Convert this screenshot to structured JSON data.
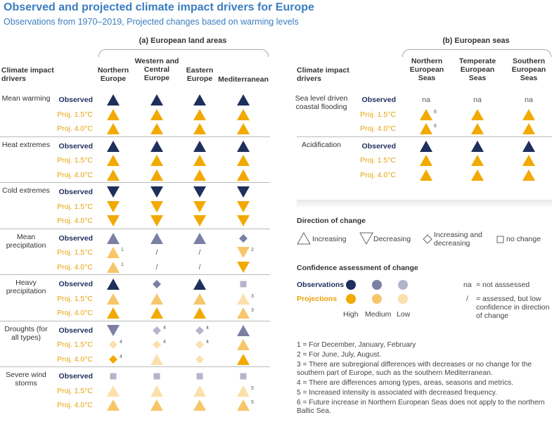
{
  "title": "Observed and projected climate impact drivers for Europe",
  "subtitle": "Observations from 1970–2019, Projected changes based on warming levels",
  "colors": {
    "obs_high": "#1f2f5c",
    "obs_medium": "#7b7fa3",
    "obs_low": "#b4b5cc",
    "proj_high": "#f2a900",
    "proj_medium": "#f7c66a",
    "proj_low": "#fbe0ad",
    "grey": "#aaaaaa",
    "accent": "#3a7dc0"
  },
  "land": {
    "panel_title": "(a) European land areas",
    "row_header": "Climate impact drivers",
    "columns": [
      "Northern Europe",
      "Western and Central Europe",
      "Eastern Europe",
      "Mediterranean"
    ],
    "groups": [
      {
        "driver": "Mean warming",
        "rows": [
          {
            "label": "Observed",
            "cells": [
              {
                "shape": "up",
                "c": "obs_high"
              },
              {
                "shape": "up",
                "c": "obs_high"
              },
              {
                "shape": "up",
                "c": "obs_high"
              },
              {
                "shape": "up",
                "c": "obs_high"
              }
            ]
          },
          {
            "label": "Proj. 1.5°C",
            "cells": [
              {
                "shape": "up",
                "c": "proj_high"
              },
              {
                "shape": "up",
                "c": "proj_high"
              },
              {
                "shape": "up",
                "c": "proj_high"
              },
              {
                "shape": "up",
                "c": "proj_high"
              }
            ]
          },
          {
            "label": "Proj. 4.0°C",
            "cells": [
              {
                "shape": "up",
                "c": "proj_high"
              },
              {
                "shape": "up",
                "c": "proj_high"
              },
              {
                "shape": "up",
                "c": "proj_high"
              },
              {
                "shape": "up",
                "c": "proj_high"
              }
            ]
          }
        ]
      },
      {
        "driver": "Heat extremes",
        "rows": [
          {
            "label": "Observed",
            "cells": [
              {
                "shape": "up",
                "c": "obs_high"
              },
              {
                "shape": "up",
                "c": "obs_high"
              },
              {
                "shape": "up",
                "c": "obs_high"
              },
              {
                "shape": "up",
                "c": "obs_high"
              }
            ]
          },
          {
            "label": "Proj. 1.5°C",
            "cells": [
              {
                "shape": "up",
                "c": "proj_high"
              },
              {
                "shape": "up",
                "c": "proj_high"
              },
              {
                "shape": "up",
                "c": "proj_high"
              },
              {
                "shape": "up",
                "c": "proj_high"
              }
            ]
          },
          {
            "label": "Proj. 4.0°C",
            "cells": [
              {
                "shape": "up",
                "c": "proj_high"
              },
              {
                "shape": "up",
                "c": "proj_high"
              },
              {
                "shape": "up",
                "c": "proj_high"
              },
              {
                "shape": "up",
                "c": "proj_high"
              }
            ]
          }
        ]
      },
      {
        "driver": "Cold extremes",
        "rows": [
          {
            "label": "Observed",
            "cells": [
              {
                "shape": "down",
                "c": "obs_high"
              },
              {
                "shape": "down",
                "c": "obs_high"
              },
              {
                "shape": "down",
                "c": "obs_high"
              },
              {
                "shape": "down",
                "c": "obs_high"
              }
            ]
          },
          {
            "label": "Proj. 1.5°C",
            "cells": [
              {
                "shape": "down",
                "c": "proj_high"
              },
              {
                "shape": "down",
                "c": "proj_high"
              },
              {
                "shape": "down",
                "c": "proj_high"
              },
              {
                "shape": "down",
                "c": "proj_high"
              }
            ]
          },
          {
            "label": "Proj. 4.0°C",
            "cells": [
              {
                "shape": "down",
                "c": "proj_high"
              },
              {
                "shape": "down",
                "c": "proj_high"
              },
              {
                "shape": "down",
                "c": "proj_high"
              },
              {
                "shape": "down",
                "c": "proj_high"
              }
            ]
          }
        ]
      },
      {
        "driver": "Mean precipitation",
        "rows": [
          {
            "label": "Observed",
            "cells": [
              {
                "shape": "up",
                "c": "obs_medium"
              },
              {
                "shape": "up",
                "c": "obs_medium"
              },
              {
                "shape": "up",
                "c": "obs_medium"
              },
              {
                "shape": "diamond",
                "c": "obs_medium"
              }
            ]
          },
          {
            "label": "Proj. 1.5°C",
            "cells": [
              {
                "shape": "up",
                "c": "proj_medium",
                "note": "1"
              },
              {
                "shape": "text",
                "text": "/"
              },
              {
                "shape": "text",
                "text": "/"
              },
              {
                "shape": "down",
                "c": "proj_medium",
                "note": "2"
              }
            ]
          },
          {
            "label": "Proj. 4.0°C",
            "cells": [
              {
                "shape": "up",
                "c": "proj_medium",
                "note": "1"
              },
              {
                "shape": "text",
                "text": "/"
              },
              {
                "shape": "text",
                "text": "/"
              },
              {
                "shape": "down",
                "c": "proj_high"
              }
            ]
          }
        ]
      },
      {
        "driver": "Heavy precipitation",
        "rows": [
          {
            "label": "Observed",
            "cells": [
              {
                "shape": "up",
                "c": "obs_high"
              },
              {
                "shape": "diamond",
                "c": "obs_medium"
              },
              {
                "shape": "up",
                "c": "obs_high"
              },
              {
                "shape": "square",
                "c": "obs_low"
              }
            ]
          },
          {
            "label": "Proj. 1.5°C",
            "cells": [
              {
                "shape": "up",
                "c": "proj_medium"
              },
              {
                "shape": "up",
                "c": "proj_medium"
              },
              {
                "shape": "up",
                "c": "proj_medium"
              },
              {
                "shape": "up",
                "c": "proj_low",
                "note": "3"
              }
            ]
          },
          {
            "label": "Proj. 4.0°C",
            "cells": [
              {
                "shape": "up",
                "c": "proj_high"
              },
              {
                "shape": "up",
                "c": "proj_high"
              },
              {
                "shape": "up",
                "c": "proj_high"
              },
              {
                "shape": "up",
                "c": "proj_medium",
                "note": "3"
              }
            ]
          }
        ]
      },
      {
        "driver": "Droughts (for all types)",
        "rows": [
          {
            "label": "Observed",
            "cells": [
              {
                "shape": "down",
                "c": "obs_medium"
              },
              {
                "shape": "diamond",
                "c": "obs_low",
                "note": "4"
              },
              {
                "shape": "diamond",
                "c": "obs_low",
                "note": "4"
              },
              {
                "shape": "up",
                "c": "obs_medium"
              }
            ]
          },
          {
            "label": "Proj. 1.5°C",
            "cells": [
              {
                "shape": "diamond",
                "c": "proj_low",
                "note": "4"
              },
              {
                "shape": "diamond",
                "c": "proj_low",
                "note": "4"
              },
              {
                "shape": "diamond",
                "c": "proj_low",
                "note": "4"
              },
              {
                "shape": "up",
                "c": "proj_medium"
              }
            ]
          },
          {
            "label": "Proj. 4.0°C",
            "cells": [
              {
                "shape": "diamond",
                "c": "proj_high",
                "note": "4"
              },
              {
                "shape": "up",
                "c": "proj_low"
              },
              {
                "shape": "diamond",
                "c": "proj_low"
              },
              {
                "shape": "up",
                "c": "proj_high"
              }
            ]
          }
        ]
      },
      {
        "driver": "Severe wind storms",
        "rows": [
          {
            "label": "Observed",
            "cells": [
              {
                "shape": "square",
                "c": "obs_low"
              },
              {
                "shape": "square",
                "c": "obs_low"
              },
              {
                "shape": "square",
                "c": "obs_low"
              },
              {
                "shape": "square",
                "c": "obs_low"
              }
            ]
          },
          {
            "label": "Proj. 1.5°C",
            "cells": [
              {
                "shape": "up",
                "c": "proj_low"
              },
              {
                "shape": "up",
                "c": "proj_low"
              },
              {
                "shape": "up",
                "c": "proj_low"
              },
              {
                "shape": "up",
                "c": "proj_low",
                "note": "5"
              }
            ]
          },
          {
            "label": "Proj. 4.0°C",
            "cells": [
              {
                "shape": "up",
                "c": "proj_medium"
              },
              {
                "shape": "up",
                "c": "proj_medium"
              },
              {
                "shape": "up",
                "c": "proj_medium"
              },
              {
                "shape": "up",
                "c": "proj_medium",
                "note": "5"
              }
            ]
          }
        ]
      }
    ]
  },
  "seas": {
    "panel_title": "(b) European seas",
    "row_header": "Climate impact drivers",
    "columns": [
      "Northern European Seas",
      "Temperate European Seas",
      "Southern European Seas"
    ],
    "groups": [
      {
        "driver": "Sea level driven coastal flooding",
        "rows": [
          {
            "label": "Observed",
            "cells": [
              {
                "shape": "text",
                "text": "na"
              },
              {
                "shape": "text",
                "text": "na"
              },
              {
                "shape": "text",
                "text": "na"
              }
            ]
          },
          {
            "label": "Proj. 1.5°C",
            "cells": [
              {
                "shape": "up",
                "c": "proj_high",
                "note": "6"
              },
              {
                "shape": "up",
                "c": "proj_high"
              },
              {
                "shape": "up",
                "c": "proj_high"
              }
            ]
          },
          {
            "label": "Proj. 4.0°C",
            "cells": [
              {
                "shape": "up",
                "c": "proj_high",
                "note": "6"
              },
              {
                "shape": "up",
                "c": "proj_high"
              },
              {
                "shape": "up",
                "c": "proj_high"
              }
            ]
          }
        ]
      },
      {
        "driver": "Acidification",
        "rows": [
          {
            "label": "Observed",
            "cells": [
              {
                "shape": "up",
                "c": "obs_high"
              },
              {
                "shape": "up",
                "c": "obs_high"
              },
              {
                "shape": "up",
                "c": "obs_high"
              }
            ]
          },
          {
            "label": "Proj. 1.5°C",
            "cells": [
              {
                "shape": "up",
                "c": "proj_high"
              },
              {
                "shape": "up",
                "c": "proj_high"
              },
              {
                "shape": "up",
                "c": "proj_high"
              }
            ]
          },
          {
            "label": "Proj. 4.0°C",
            "cells": [
              {
                "shape": "up",
                "c": "proj_high"
              },
              {
                "shape": "up",
                "c": "proj_high"
              },
              {
                "shape": "up",
                "c": "proj_high"
              }
            ]
          }
        ]
      }
    ]
  },
  "legend": {
    "direction_title": "Direction of change",
    "increasing": "Increasing",
    "decreasing": "Decreasing",
    "inc_dec": "Increasing and decreasing",
    "no_change": "no change",
    "confidence_title": "Confidence assessment of change",
    "observations": "Observations",
    "projections": "Projections",
    "high": "High",
    "medium": "Medium",
    "low": "Low",
    "na_key": "na",
    "na_text": "= not asssessed",
    "slash_key": "/",
    "slash_text": "= assessed, but low confidence in direction of change"
  },
  "notes": [
    "1 = For December, January, February",
    "2 = For June, July, August.",
    "3 = There are subregional differences with decreases or no change for the southern part of Europe, such as the southern Mediterranean.",
    "4 = There are differences among types, areas, seasons and metrics.",
    "5 = Increased intensity is associated with decreased frequency.",
    "6 = Future increase in Northern European Seas does not apply to the northern Baltic Sea."
  ]
}
